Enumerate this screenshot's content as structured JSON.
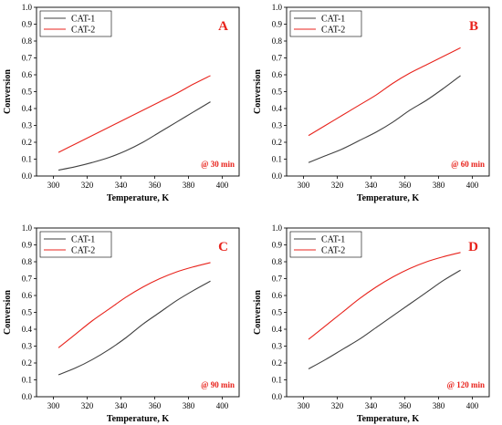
{
  "style": {
    "cat1_color": "#404040",
    "cat2_color": "#e8231c",
    "annotation_color": "#e8231c"
  },
  "chart_data": [
    {
      "type": "line",
      "panel_letter": "A",
      "annotation": "@ 30 min",
      "xlabel": "Temperature, K",
      "ylabel": "Conversion",
      "xlim": [
        290,
        410
      ],
      "ylim": [
        0,
        1.0
      ],
      "xticks": [
        "300",
        "320",
        "340",
        "360",
        "380",
        "400"
      ],
      "yticks": [
        "0.0",
        "0.1",
        "0.2",
        "0.3",
        "0.4",
        "0.5",
        "0.6",
        "0.7",
        "0.8",
        "0.9",
        "1.0"
      ],
      "grid": false,
      "legend": "top-left",
      "series": [
        {
          "name": "CAT-1",
          "x": [
            303,
            313,
            323,
            333,
            343,
            353,
            363,
            373,
            383,
            393
          ],
          "y": [
            0.035,
            0.055,
            0.08,
            0.11,
            0.15,
            0.2,
            0.26,
            0.32,
            0.38,
            0.44
          ]
        },
        {
          "name": "CAT-2",
          "x": [
            303,
            313,
            323,
            333,
            343,
            353,
            363,
            373,
            383,
            393
          ],
          "y": [
            0.14,
            0.19,
            0.24,
            0.29,
            0.34,
            0.39,
            0.44,
            0.49,
            0.545,
            0.595
          ]
        }
      ]
    },
    {
      "type": "line",
      "panel_letter": "B",
      "annotation": "@ 60 min",
      "xlabel": "Temperature, K",
      "ylabel": "Conversion",
      "xlim": [
        290,
        410
      ],
      "ylim": [
        0,
        1.0
      ],
      "xticks": [
        "300",
        "320",
        "340",
        "360",
        "380",
        "400"
      ],
      "yticks": [
        "0.0",
        "0.1",
        "0.2",
        "0.3",
        "0.4",
        "0.5",
        "0.6",
        "0.7",
        "0.8",
        "0.9",
        "1.0"
      ],
      "grid": false,
      "legend": "top-left",
      "series": [
        {
          "name": "CAT-1",
          "x": [
            303,
            313,
            323,
            333,
            343,
            353,
            363,
            373,
            383,
            393
          ],
          "y": [
            0.08,
            0.12,
            0.16,
            0.21,
            0.26,
            0.32,
            0.39,
            0.45,
            0.52,
            0.595
          ]
        },
        {
          "name": "CAT-2",
          "x": [
            303,
            313,
            323,
            333,
            343,
            353,
            363,
            373,
            383,
            393
          ],
          "y": [
            0.24,
            0.3,
            0.36,
            0.42,
            0.48,
            0.55,
            0.61,
            0.66,
            0.71,
            0.76
          ]
        }
      ]
    },
    {
      "type": "line",
      "panel_letter": "C",
      "annotation": "@ 90 min",
      "xlabel": "Temperature, K",
      "ylabel": "Conversion",
      "xlim": [
        290,
        410
      ],
      "ylim": [
        0,
        1.0
      ],
      "xticks": [
        "300",
        "320",
        "340",
        "360",
        "380",
        "400"
      ],
      "yticks": [
        "0.0",
        "0.1",
        "0.2",
        "0.3",
        "0.4",
        "0.5",
        "0.6",
        "0.7",
        "0.8",
        "0.9",
        "1.0"
      ],
      "grid": false,
      "legend": "top-left",
      "series": [
        {
          "name": "CAT-1",
          "x": [
            303,
            313,
            323,
            333,
            343,
            353,
            363,
            373,
            383,
            393
          ],
          "y": [
            0.13,
            0.17,
            0.22,
            0.28,
            0.35,
            0.43,
            0.5,
            0.57,
            0.63,
            0.685
          ]
        },
        {
          "name": "CAT-2",
          "x": [
            303,
            313,
            323,
            333,
            343,
            353,
            363,
            373,
            383,
            393
          ],
          "y": [
            0.29,
            0.37,
            0.45,
            0.52,
            0.59,
            0.65,
            0.7,
            0.74,
            0.77,
            0.795
          ]
        }
      ]
    },
    {
      "type": "line",
      "panel_letter": "D",
      "annotation": "@ 120 min",
      "xlabel": "Temperature, K",
      "ylabel": "Conversion",
      "xlim": [
        290,
        410
      ],
      "ylim": [
        0,
        1.0
      ],
      "xticks": [
        "300",
        "320",
        "340",
        "360",
        "380",
        "400"
      ],
      "yticks": [
        "0.0",
        "0.1",
        "0.2",
        "0.3",
        "0.4",
        "0.5",
        "0.6",
        "0.7",
        "0.8",
        "0.9",
        "1.0"
      ],
      "grid": false,
      "legend": "top-left",
      "series": [
        {
          "name": "CAT-1",
          "x": [
            303,
            313,
            323,
            333,
            343,
            353,
            363,
            373,
            383,
            393
          ],
          "y": [
            0.165,
            0.22,
            0.28,
            0.34,
            0.41,
            0.48,
            0.55,
            0.62,
            0.69,
            0.75
          ]
        },
        {
          "name": "CAT-2",
          "x": [
            303,
            313,
            323,
            333,
            343,
            353,
            363,
            373,
            383,
            393
          ],
          "y": [
            0.34,
            0.42,
            0.5,
            0.58,
            0.65,
            0.71,
            0.76,
            0.8,
            0.83,
            0.855
          ]
        }
      ]
    }
  ]
}
